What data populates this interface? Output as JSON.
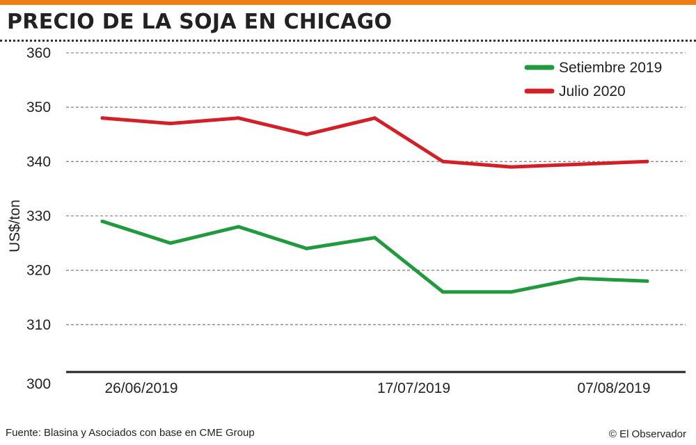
{
  "header": {
    "title": "PRECIO DE LA SOJA EN CHICAGO",
    "accent_color": "#f07d12"
  },
  "chart_data": {
    "type": "line",
    "title": "PRECIO DE LA SOJA EN CHICAGO",
    "xlabel": "",
    "ylabel": "US$/ton",
    "ylim": [
      300,
      360
    ],
    "yticks": [
      300,
      310,
      320,
      330,
      340,
      350,
      360
    ],
    "xtick_labels": [
      "26/06/2019",
      "17/07/2019",
      "07/08/2019"
    ],
    "grid": true,
    "legend_position": "top-right",
    "series": [
      {
        "name": "Setiembre 2019",
        "color": "#1f9a3d",
        "values": [
          329,
          325,
          328,
          324,
          326,
          316,
          316,
          318.5,
          318
        ]
      },
      {
        "name": "Julio 2020",
        "color": "#d41f26",
        "values": [
          348,
          347,
          348,
          345,
          348,
          340,
          339,
          339.5,
          340
        ]
      }
    ]
  },
  "footer": {
    "source": "Fuente: Blasina y Asociados con base en CME Group",
    "credit": "© El Observador"
  }
}
